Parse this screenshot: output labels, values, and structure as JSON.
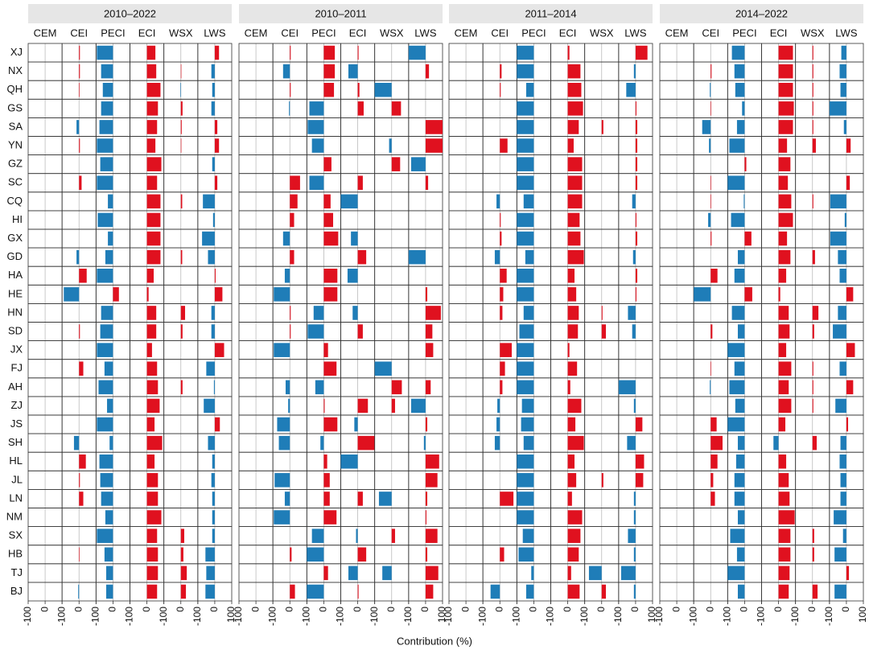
{
  "chart_data": {
    "type": "bar",
    "orientation": "horizontal",
    "xlabel": "Contribution (%)",
    "categories": [
      "XJ",
      "NX",
      "QH",
      "GS",
      "SA",
      "YN",
      "GZ",
      "SC",
      "CQ",
      "HI",
      "GX",
      "GD",
      "HA",
      "HE",
      "HN",
      "SD",
      "JX",
      "FJ",
      "AH",
      "ZJ",
      "JS",
      "SH",
      "HL",
      "JL",
      "LN",
      "NM",
      "SX",
      "HB",
      "TJ",
      "BJ"
    ],
    "xlim": [
      -100,
      100
    ],
    "xticks": [
      -100,
      0,
      100
    ],
    "positive_color": "#e0111f",
    "negative_color": "#1f7db8",
    "panels": [
      {
        "title": "2010–2022",
        "series": [
          {
            "name": "CEM",
            "values": [
              0,
              0,
              0,
              0,
              0,
              0,
              0,
              0,
              0,
              0,
              0,
              0,
              0,
              0,
              0,
              0,
              0,
              0,
              0,
              0,
              0,
              0,
              0,
              0,
              0,
              0,
              0,
              0,
              0,
              0
            ]
          },
          {
            "name": "CEI",
            "values": [
              5,
              5,
              3,
              0,
              -15,
              5,
              0,
              15,
              0,
              0,
              0,
              -15,
              45,
              -90,
              0,
              5,
              0,
              25,
              0,
              0,
              0,
              -30,
              40,
              5,
              25,
              0,
              0,
              3,
              0,
              -5
            ]
          },
          {
            "name": "PECI",
            "values": [
              -95,
              -70,
              -60,
              -70,
              -80,
              -95,
              -75,
              -95,
              -30,
              -90,
              -30,
              -45,
              -95,
              35,
              -70,
              -75,
              -95,
              -50,
              -85,
              -35,
              -95,
              -20,
              -80,
              -75,
              -70,
              -45,
              -95,
              -50,
              -40,
              -40
            ]
          },
          {
            "name": "ECI",
            "values": [
              50,
              55,
              80,
              65,
              60,
              50,
              85,
              60,
              80,
              80,
              80,
              80,
              40,
              10,
              55,
              55,
              30,
              60,
              65,
              75,
              45,
              90,
              45,
              65,
              65,
              85,
              60,
              65,
              65,
              60
            ]
          },
          {
            "name": "WSX",
            "values": [
              0,
              3,
              -3,
              10,
              5,
              3,
              0,
              0,
              8,
              0,
              0,
              8,
              0,
              0,
              25,
              10,
              0,
              0,
              10,
              0,
              0,
              0,
              0,
              0,
              0,
              0,
              20,
              15,
              35,
              30
            ]
          },
          {
            "name": "LWS",
            "values": [
              25,
              -20,
              -15,
              -20,
              15,
              25,
              -15,
              15,
              -70,
              -10,
              -75,
              -40,
              5,
              45,
              -20,
              -20,
              55,
              -50,
              -5,
              -65,
              30,
              -40,
              -15,
              -20,
              -15,
              -15,
              -15,
              -55,
              -50,
              -55
            ]
          }
        ]
      },
      {
        "title": "2010–2011",
        "series": [
          {
            "name": "CEM",
            "values": [
              0,
              0,
              0,
              0,
              0,
              0,
              0,
              0,
              0,
              0,
              0,
              0,
              0,
              0,
              0,
              0,
              0,
              0,
              0,
              0,
              0,
              0,
              0,
              0,
              0,
              0,
              0,
              0,
              0,
              0
            ]
          },
          {
            "name": "CEI",
            "values": [
              5,
              -40,
              5,
              -5,
              0,
              0,
              0,
              60,
              45,
              25,
              -40,
              25,
              -30,
              -95,
              5,
              5,
              -95,
              0,
              -25,
              -10,
              -75,
              -65,
              0,
              -90,
              -30,
              -95,
              0,
              10,
              0,
              30
            ]
          },
          {
            "name": "PECI",
            "values": [
              65,
              65,
              60,
              -85,
              -95,
              -70,
              45,
              -85,
              40,
              55,
              85,
              0,
              80,
              80,
              -60,
              -95,
              25,
              75,
              -50,
              5,
              80,
              -20,
              20,
              35,
              35,
              75,
              -70,
              -100,
              25,
              -100
            ]
          },
          {
            "name": "ECI",
            "values": [
              5,
              -55,
              10,
              35,
              0,
              0,
              0,
              30,
              -100,
              0,
              -40,
              50,
              -60,
              0,
              -30,
              30,
              0,
              0,
              0,
              60,
              -20,
              100,
              -100,
              0,
              30,
              0,
              -10,
              50,
              -55,
              5
            ]
          },
          {
            "name": "WSX",
            "values": [
              0,
              0,
              -100,
              55,
              0,
              -15,
              50,
              0,
              0,
              0,
              0,
              0,
              0,
              0,
              0,
              0,
              0,
              -100,
              60,
              20,
              0,
              0,
              0,
              0,
              -75,
              0,
              20,
              0,
              -55,
              0
            ]
          },
          {
            "name": "LWS",
            "values": [
              -100,
              20,
              0,
              0,
              100,
              100,
              -85,
              15,
              0,
              0,
              0,
              -100,
              0,
              10,
              90,
              40,
              45,
              0,
              30,
              -85,
              10,
              -10,
              80,
              70,
              10,
              5,
              70,
              10,
              75,
              45
            ]
          }
        ]
      },
      {
        "title": "2011–2014",
        "series": [
          {
            "name": "CEM",
            "values": [
              0,
              0,
              0,
              0,
              0,
              0,
              0,
              0,
              0,
              0,
              0,
              0,
              0,
              0,
              0,
              0,
              0,
              0,
              0,
              0,
              0,
              0,
              0,
              0,
              0,
              0,
              0,
              0,
              0,
              0
            ]
          },
          {
            "name": "CEI",
            "values": [
              0,
              10,
              5,
              0,
              0,
              45,
              0,
              0,
              -20,
              5,
              10,
              -30,
              40,
              20,
              15,
              0,
              70,
              30,
              15,
              -15,
              -20,
              -30,
              0,
              0,
              80,
              0,
              0,
              25,
              0,
              -55
            ]
          },
          {
            "name": "PECI",
            "values": [
              -100,
              -100,
              -45,
              -100,
              -100,
              -100,
              -100,
              -100,
              -60,
              -100,
              -100,
              -50,
              -100,
              -100,
              -60,
              -85,
              -100,
              -100,
              -100,
              -70,
              -75,
              -60,
              -100,
              -100,
              -100,
              -100,
              -65,
              -90,
              -15,
              -45
            ]
          },
          {
            "name": "ECI",
            "values": [
              10,
              75,
              80,
              90,
              65,
              35,
              85,
              85,
              85,
              70,
              75,
              95,
              40,
              50,
              65,
              60,
              10,
              55,
              15,
              80,
              45,
              95,
              40,
              50,
              25,
              85,
              75,
              65,
              20,
              70
            ]
          },
          {
            "name": "WSX",
            "values": [
              0,
              0,
              0,
              0,
              10,
              0,
              0,
              0,
              0,
              0,
              0,
              0,
              0,
              0,
              5,
              25,
              0,
              0,
              0,
              0,
              0,
              0,
              0,
              10,
              0,
              0,
              0,
              0,
              -75,
              25
            ]
          },
          {
            "name": "LWS",
            "values": [
              70,
              -10,
              -55,
              5,
              10,
              10,
              10,
              10,
              -20,
              5,
              10,
              -15,
              10,
              5,
              -45,
              -20,
              0,
              0,
              -100,
              -10,
              40,
              -50,
              50,
              45,
              -10,
              -10,
              -45,
              -10,
              -85,
              -10
            ]
          }
        ]
      },
      {
        "title": "2014–2022",
        "series": [
          {
            "name": "CEM",
            "values": [
              0,
              0,
              0,
              0,
              0,
              0,
              0,
              0,
              0,
              0,
              0,
              0,
              0,
              0,
              0,
              0,
              0,
              0,
              0,
              0,
              0,
              0,
              0,
              0,
              0,
              0,
              0,
              0,
              0,
              0
            ]
          },
          {
            "name": "CEI",
            "values": [
              0,
              5,
              -5,
              3,
              -50,
              -10,
              0,
              3,
              3,
              -15,
              5,
              0,
              40,
              -100,
              0,
              10,
              0,
              3,
              -5,
              0,
              35,
              70,
              40,
              15,
              25,
              0,
              0,
              0,
              0,
              0
            ]
          },
          {
            "name": "PECI",
            "values": [
              -75,
              -60,
              -55,
              -15,
              -45,
              -90,
              10,
              -100,
              -5,
              -80,
              40,
              -40,
              -60,
              45,
              -75,
              -40,
              -100,
              -60,
              -90,
              -55,
              -100,
              -40,
              -50,
              -60,
              -60,
              -40,
              -85,
              -45,
              -100,
              -40
            ]
          },
          {
            "name": "ECI",
            "values": [
              85,
              85,
              85,
              90,
              85,
              50,
              70,
              55,
              75,
              85,
              50,
              70,
              45,
              10,
              60,
              65,
              45,
              75,
              60,
              75,
              40,
              -30,
              45,
              60,
              65,
              95,
              70,
              70,
              65,
              60
            ]
          },
          {
            "name": "WSX",
            "values": [
              5,
              5,
              5,
              5,
              5,
              20,
              0,
              0,
              5,
              0,
              0,
              15,
              0,
              0,
              35,
              10,
              0,
              5,
              5,
              5,
              0,
              25,
              0,
              0,
              0,
              0,
              10,
              10,
              0,
              30
            ]
          },
          {
            "name": "LWS",
            "values": [
              -30,
              -40,
              -35,
              -100,
              -15,
              25,
              0,
              20,
              -95,
              -10,
              -95,
              -50,
              -40,
              40,
              -50,
              -80,
              50,
              -40,
              40,
              -65,
              10,
              -35,
              -40,
              -35,
              -35,
              -75,
              -20,
              -70,
              15,
              -70
            ]
          }
        ]
      }
    ]
  }
}
